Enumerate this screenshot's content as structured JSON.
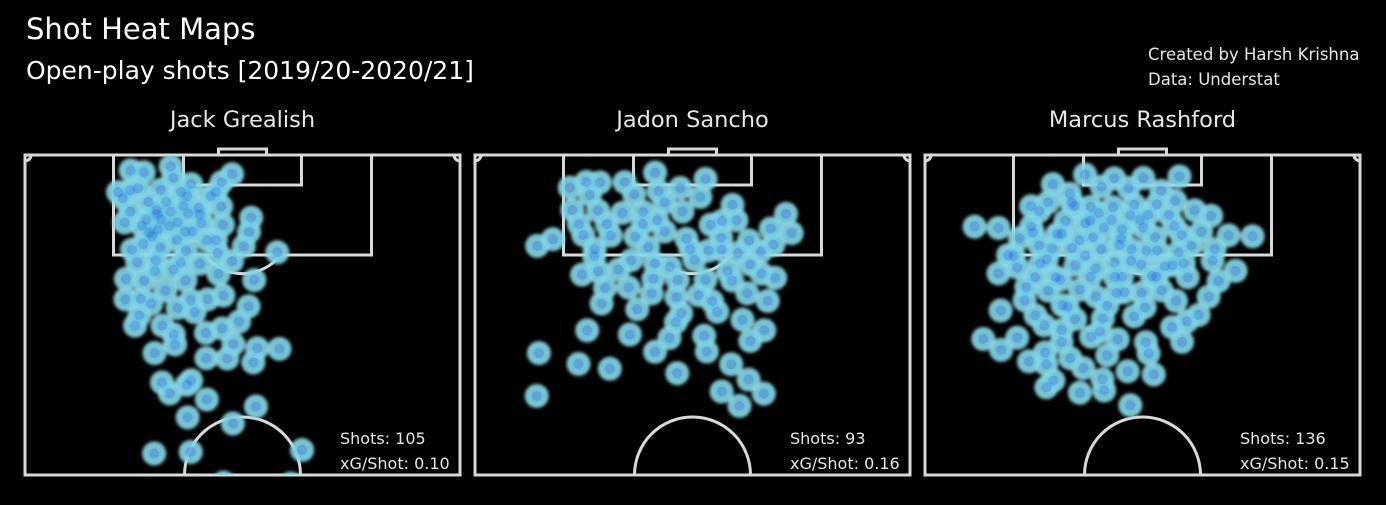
{
  "title": "Shot Heat Maps",
  "subtitle": "Open-play shots [2019/20-2020/21]",
  "credits": {
    "created_by": "Created by Harsh Krishna",
    "data_source": "Data: Understat"
  },
  "colors": {
    "background": "#000000",
    "pitch_lines": "#d9d9d9",
    "text": "#ffffff",
    "density_low": "#8ed9e6",
    "density_mid": "#2aa6e0",
    "density_high": "#0a14d6"
  },
  "chart_data": [
    {
      "type": "heatmap",
      "player": "Jack Grealish",
      "stats": {
        "shots_label": "Shots: 105",
        "xg_label": "xG/Shot: 0.10"
      },
      "shots": [
        [
          33.5,
          3.6
        ],
        [
          24.3,
          4.8
        ],
        [
          47.6,
          6
        ],
        [
          34.1,
          7.2
        ],
        [
          45.2,
          8.5
        ],
        [
          38.2,
          9.1
        ],
        [
          26,
          10.4
        ],
        [
          31.2,
          10.9
        ],
        [
          35.9,
          11.6
        ],
        [
          43.9,
          11.6
        ],
        [
          21.4,
          11.6
        ],
        [
          42.7,
          12.9
        ],
        [
          22.5,
          13.5
        ],
        [
          28.4,
          14.7
        ],
        [
          32.5,
          14.7
        ],
        [
          36.4,
          15.9
        ],
        [
          39.9,
          16.5
        ],
        [
          45.1,
          16.1
        ],
        [
          24.2,
          17.7
        ],
        [
          30.2,
          17.2
        ],
        [
          33.5,
          17.7
        ],
        [
          37.5,
          18.4
        ],
        [
          27.9,
          20.2
        ],
        [
          31.3,
          20.2
        ],
        [
          35.1,
          21
        ],
        [
          40.6,
          21.3
        ],
        [
          52,
          19.6
        ],
        [
          45.5,
          21.8
        ],
        [
          26.9,
          22.1
        ],
        [
          30.5,
          23.3
        ],
        [
          38.5,
          23.9
        ],
        [
          51.5,
          24
        ],
        [
          29.2,
          25.4
        ],
        [
          34.9,
          26.5
        ],
        [
          41.9,
          26.6
        ],
        [
          50.3,
          28.5
        ],
        [
          58,
          30.4
        ],
        [
          47.6,
          33.2
        ],
        [
          25.8,
          33.5
        ],
        [
          30.1,
          32.9
        ],
        [
          40.2,
          34
        ],
        [
          34.1,
          35.8
        ],
        [
          44.5,
          37.2
        ],
        [
          27.4,
          39.3
        ],
        [
          36.9,
          39.2
        ],
        [
          52.7,
          39.1
        ],
        [
          23.1,
          45.1
        ],
        [
          29,
          46.5
        ],
        [
          38.1,
          45.4
        ],
        [
          45.6,
          43.9
        ],
        [
          39,
          49.1
        ],
        [
          51.4,
          47.3
        ],
        [
          25.3,
          53.3
        ],
        [
          31.6,
          53.3
        ],
        [
          34.2,
          56.1
        ],
        [
          41.6,
          55.6
        ],
        [
          47.9,
          59.1
        ],
        [
          53.4,
          60.4
        ],
        [
          58.5,
          60.6
        ],
        [
          29.8,
          61.9
        ],
        [
          41.7,
          63.5
        ],
        [
          52.5,
          64.8
        ],
        [
          31.5,
          71.1
        ],
        [
          37.2,
          71.8
        ],
        [
          41.8,
          76.4
        ],
        [
          53.1,
          78.6
        ],
        [
          37.4,
          82
        ],
        [
          47.8,
          83.9
        ],
        [
          29.7,
          93.3
        ],
        [
          38.1,
          92.8
        ],
        [
          63.7,
          92.2
        ],
        [
          45.7,
          102.4
        ],
        [
          61.1,
          102.7
        ],
        [
          32.8,
          111.2
        ],
        [
          59.2,
          107.9
        ],
        [
          35.6,
          111.5
        ],
        [
          24.2,
          11.1
        ],
        [
          27.3,
          5.4
        ],
        [
          30.4,
          18.5
        ],
        [
          33.2,
          22.2
        ],
        [
          28.6,
          24.2
        ],
        [
          36.8,
          24
        ],
        [
          40.2,
          18.6
        ],
        [
          22.9,
          21.1
        ],
        [
          37.3,
          12.9
        ],
        [
          31.1,
          28.9
        ],
        [
          27.2,
          27.8
        ],
        [
          43.9,
          26.6
        ],
        [
          24.6,
          29.6
        ],
        [
          37,
          29.9
        ],
        [
          35.8,
          33.6
        ],
        [
          29.9,
          36.3
        ],
        [
          44.3,
          30.6
        ],
        [
          23.2,
          38.7
        ],
        [
          26.6,
          45
        ],
        [
          32.3,
          42.4
        ],
        [
          35.1,
          47.8
        ],
        [
          42,
          45.1
        ],
        [
          45.3,
          54.2
        ],
        [
          49.2,
          52.1
        ],
        [
          26.3,
          50.1
        ],
        [
          34.5,
          59.2
        ],
        [
          46.5,
          63.6
        ],
        [
          38.2,
          70.4
        ],
        [
          33.3,
          74.5
        ]
      ]
    },
    {
      "type": "heatmap",
      "player": "Jadon Sancho",
      "stats": {
        "shots_label": "Shots: 93",
        "xg_label": "xG/Shot: 0.16"
      },
      "shots": [
        [
          41.4,
          5.5
        ],
        [
          53,
          7.5
        ],
        [
          25.6,
          8.4
        ],
        [
          28.7,
          8.6
        ],
        [
          34.4,
          8.5
        ],
        [
          21.8,
          10.2
        ],
        [
          47.2,
          10.3
        ],
        [
          26.4,
          12.4
        ],
        [
          43.6,
          14.8
        ],
        [
          51.8,
          13.1
        ],
        [
          59.2,
          15.6
        ],
        [
          22.4,
          17.2
        ],
        [
          28.3,
          17.4
        ],
        [
          33.9,
          18.1
        ],
        [
          38.7,
          17.8
        ],
        [
          47.7,
          17.7
        ],
        [
          41.9,
          20.4
        ],
        [
          56.8,
          20.6
        ],
        [
          60.1,
          20.4
        ],
        [
          71.5,
          18.4
        ],
        [
          68,
          23
        ],
        [
          24.9,
          25
        ],
        [
          31.2,
          25.2
        ],
        [
          36.9,
          25.5
        ],
        [
          43.6,
          23.9
        ],
        [
          56.6,
          25.9
        ],
        [
          63,
          26.7
        ],
        [
          72.8,
          24.4
        ],
        [
          17.9,
          26.3
        ],
        [
          27.5,
          29.4
        ],
        [
          39.8,
          28.8
        ],
        [
          49.5,
          29.5
        ],
        [
          56.7,
          29.6
        ],
        [
          65.7,
          30.2
        ],
        [
          68.6,
          28
        ],
        [
          35.9,
          32.9
        ],
        [
          44.8,
          34.9
        ],
        [
          50.5,
          32.8
        ],
        [
          63.3,
          34.2
        ],
        [
          24.6,
          37.4
        ],
        [
          28.3,
          36.3
        ],
        [
          41,
          38.7
        ],
        [
          46.6,
          39.1
        ],
        [
          53,
          39
        ],
        [
          59.1,
          39.2
        ],
        [
          65.9,
          37.1
        ],
        [
          29.9,
          41.6
        ],
        [
          40.6,
          43.3
        ],
        [
          51.4,
          43.8
        ],
        [
          62.6,
          43.2
        ],
        [
          67.3,
          45.6
        ],
        [
          37.3,
          48.2
        ],
        [
          55.7,
          49
        ],
        [
          46.2,
          52.2
        ],
        [
          61.5,
          51.5
        ],
        [
          25.8,
          54.8
        ],
        [
          35.6,
          56.1
        ],
        [
          44.7,
          57.2
        ],
        [
          52.7,
          56.5
        ],
        [
          66.5,
          54.8
        ],
        [
          14.7,
          61.9
        ],
        [
          41.4,
          61.5
        ],
        [
          53.3,
          61.4
        ],
        [
          58.9,
          65.4
        ],
        [
          46.5,
          68.2
        ],
        [
          23.8,
          65.3
        ],
        [
          31,
          66.8
        ],
        [
          62.9,
          70.2
        ],
        [
          66.4,
          74.6
        ],
        [
          14.2,
          75.3
        ],
        [
          56.7,
          73.9
        ],
        [
          60.8,
          78.4
        ],
        [
          14.3,
          28.4
        ],
        [
          36.6,
          12.3
        ],
        [
          30.3,
          21.6
        ],
        [
          42.2,
          11.3
        ],
        [
          27.4,
          31.6
        ],
        [
          41.4,
          33.9
        ],
        [
          53.7,
          29.9
        ],
        [
          58.1,
          36.2
        ],
        [
          48.6,
          26.2
        ],
        [
          35.3,
          41.4
        ],
        [
          46.3,
          44.4
        ],
        [
          47.4,
          49.5
        ],
        [
          29.1,
          46.4
        ],
        [
          63.3,
          58.1
        ],
        [
          54.5,
          45.7
        ],
        [
          38.6,
          21.5
        ],
        [
          23.9,
          21.6
        ],
        [
          54.2,
          21.8
        ],
        [
          60.5,
          30.6
        ],
        [
          33,
          35.8
        ],
        [
          69,
          38.4
        ]
      ]
    },
    {
      "type": "heatmap",
      "player": "Marcus Rashford",
      "stats": {
        "shots_label": "Shots: 136",
        "xg_label": "xG/Shot: 0.15"
      },
      "shots": [
        [
          36.8,
          6.1
        ],
        [
          43.5,
          7.3
        ],
        [
          50.2,
          7.2
        ],
        [
          58.5,
          6.7
        ],
        [
          29.4,
          9.1
        ],
        [
          40.6,
          9.9
        ],
        [
          46.8,
          10.3
        ],
        [
          54.3,
          11.2
        ],
        [
          33.3,
          12.1
        ],
        [
          24.4,
          16
        ],
        [
          28.3,
          14.8
        ],
        [
          34.4,
          15.9
        ],
        [
          38.1,
          16.2
        ],
        [
          43.2,
          16.3
        ],
        [
          48.1,
          15.5
        ],
        [
          53.3,
          15.4
        ],
        [
          57.5,
          14.3
        ],
        [
          26.3,
          17.5
        ],
        [
          40,
          18.2
        ],
        [
          47.2,
          18.9
        ],
        [
          51.3,
          18.7
        ],
        [
          62,
          17.3
        ],
        [
          65.8,
          19
        ],
        [
          32.3,
          20.6
        ],
        [
          36.9,
          21.3
        ],
        [
          41.1,
          22.7
        ],
        [
          45.3,
          23.2
        ],
        [
          50.2,
          22.7
        ],
        [
          57.3,
          22.2
        ],
        [
          24.4,
          22.3
        ],
        [
          11.4,
          22.4
        ],
        [
          16.9,
          22.8
        ],
        [
          30.4,
          24.7
        ],
        [
          38.6,
          25.7
        ],
        [
          45.1,
          26.1
        ],
        [
          52.9,
          25.7
        ],
        [
          59,
          25
        ],
        [
          63.5,
          24
        ],
        [
          21.8,
          26
        ],
        [
          26.3,
          28.2
        ],
        [
          33.8,
          29.1
        ],
        [
          40.5,
          29.5
        ],
        [
          47.5,
          29.5
        ],
        [
          53.4,
          29.8
        ],
        [
          61.2,
          28.3
        ],
        [
          69.8,
          25.1
        ],
        [
          75.3,
          25.4
        ],
        [
          20.4,
          31.5
        ],
        [
          28,
          32.6
        ],
        [
          34.6,
          34.4
        ],
        [
          43.6,
          33.6
        ],
        [
          49.7,
          34.2
        ],
        [
          55.1,
          34.8
        ],
        [
          66.1,
          33
        ],
        [
          16.9,
          37
        ],
        [
          25.3,
          38.2
        ],
        [
          31.1,
          39
        ],
        [
          38,
          38.1
        ],
        [
          45.3,
          38.1
        ],
        [
          52.2,
          37.8
        ],
        [
          60.4,
          38.2
        ],
        [
          71.4,
          36.2
        ],
        [
          28.3,
          42.4
        ],
        [
          35.6,
          42.1
        ],
        [
          44,
          43.1
        ],
        [
          49.8,
          43.1
        ],
        [
          57.7,
          45.6
        ],
        [
          65.2,
          44.3
        ],
        [
          22.9,
          45.4
        ],
        [
          31.6,
          46.9
        ],
        [
          41.9,
          47.1
        ],
        [
          50.5,
          47.6
        ],
        [
          62.9,
          50
        ],
        [
          25.4,
          50.1
        ],
        [
          34.5,
          51.3
        ],
        [
          40.9,
          51.1
        ],
        [
          56.8,
          53.8
        ],
        [
          27.4,
          53.2
        ],
        [
          13.4,
          57.5
        ],
        [
          21.2,
          57.1
        ],
        [
          31.4,
          58.4
        ],
        [
          38.2,
          56.8
        ],
        [
          44.3,
          57.6
        ],
        [
          50.8,
          58.5
        ],
        [
          59.1,
          58.4
        ],
        [
          17.5,
          60.9
        ],
        [
          27.6,
          61.7
        ],
        [
          33.4,
          63.5
        ],
        [
          41.9,
          62.6
        ],
        [
          51.4,
          62
        ],
        [
          23.9,
          64.5
        ],
        [
          36.4,
          66.6
        ],
        [
          46.6,
          67.6
        ],
        [
          52.6,
          68.6
        ],
        [
          29.5,
          70.5
        ],
        [
          40.8,
          70.1
        ],
        [
          27.9,
          72.6
        ],
        [
          35.6,
          74.3
        ],
        [
          41.2,
          73.6
        ],
        [
          47.2,
          78.2
        ],
        [
          30.1,
          38.2
        ],
        [
          36.8,
          31.5
        ],
        [
          42.9,
          20.3
        ],
        [
          26.5,
          33.9
        ],
        [
          47.4,
          33.1
        ],
        [
          39.3,
          44.2
        ],
        [
          54.4,
          42.3
        ],
        [
          31.4,
          24.6
        ],
        [
          50.9,
          29.9
        ],
        [
          33.7,
          14.9
        ],
        [
          19.1,
          31.3
        ],
        [
          44.7,
          28.1
        ],
        [
          58.3,
          30.4
        ],
        [
          23.3,
          41.3
        ],
        [
          59.5,
          33.9
        ],
        [
          48.1,
          50.4
        ],
        [
          32.8,
          47.5
        ],
        [
          39.2,
          35.5
        ],
        [
          56.1,
          18.7
        ],
        [
          24.8,
          24.3
        ],
        [
          35.5,
          26.6
        ],
        [
          43.6,
          38.1
        ],
        [
          66.6,
          29.4
        ],
        [
          21.2,
          35.1
        ],
        [
          29.2,
          29.2
        ],
        [
          38,
          20.5
        ],
        [
          53.2,
          38.1
        ],
        [
          60.2,
          52
        ],
        [
          31.4,
          54.7
        ],
        [
          45.8,
          42.9
        ],
        [
          17.4,
          48.6
        ],
        [
          40.2,
          55.2
        ],
        [
          56.9,
          34.4
        ],
        [
          67.5,
          39.4
        ],
        [
          49.4,
          20.3
        ],
        [
          27.9,
          65.4
        ]
      ]
    }
  ]
}
